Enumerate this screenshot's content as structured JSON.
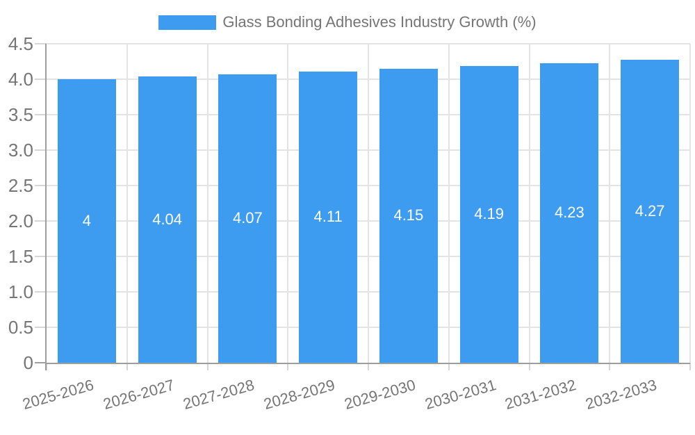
{
  "legend": {
    "label": "Glass Bonding Adhesives Industry Growth (%)",
    "position": "top"
  },
  "chart_data": {
    "type": "bar",
    "title": "Glass Bonding Adhesives Industry Growth (%)",
    "xlabel": "",
    "ylabel": "",
    "categories": [
      "2025-2026",
      "2026-2027",
      "2027-2028",
      "2028-2029",
      "2029-2030",
      "2030-2031",
      "2031-2032",
      "2032-2033"
    ],
    "values": [
      4,
      4.04,
      4.07,
      4.11,
      4.15,
      4.19,
      4.23,
      4.27
    ],
    "value_labels": [
      "4",
      "4.04",
      "4.07",
      "4.11",
      "4.15",
      "4.19",
      "4.23",
      "4.27"
    ],
    "ylim": [
      0,
      4.5
    ],
    "ytick_step": 0.5,
    "ytick_labels": [
      "0",
      "0.5",
      "1.0",
      "1.5",
      "2.0",
      "2.5",
      "3.0",
      "3.5",
      "4.0",
      "4.5"
    ],
    "grid": true,
    "legend_position": "top",
    "colors": {
      "bar": "#3D9BF0",
      "axis_text": "#757575",
      "bar_label_text": "#FFFFFF",
      "gridline": "#E3E3E3",
      "tick": "#D6D6D6",
      "axis_line": "#9E9E9E",
      "background": "#FFFFFF"
    }
  }
}
